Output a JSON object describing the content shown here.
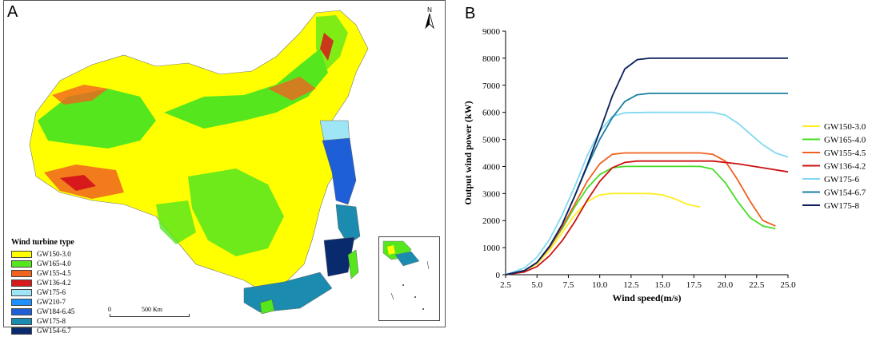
{
  "panel_a": {
    "letter": "A",
    "north_label": "N",
    "scale_zero": "0",
    "scale_label": "500 Km",
    "legend_title": "Wind turbine type",
    "legend": [
      {
        "label": "GW150-3.0",
        "color": "#ffff00"
      },
      {
        "label": "GW165-4.0",
        "color": "#55e61e"
      },
      {
        "label": "GW155-4.5",
        "color": "#f06420"
      },
      {
        "label": "GW136-4.2",
        "color": "#d7191c"
      },
      {
        "label": "GW175-6",
        "color": "#9ee6f5"
      },
      {
        "label": "GW210-7",
        "color": "#1e90ff"
      },
      {
        "label": "GW184-6.45",
        "color": "#1e5fd7"
      },
      {
        "label": "GW175-8",
        "color": "#1b8bb0"
      },
      {
        "label": "GW154-6.7",
        "color": "#0a2a6e"
      }
    ]
  },
  "panel_b": {
    "letter": "B"
  },
  "chart_data": {
    "type": "line",
    "title": "",
    "xlabel": "Wind speed(m/s)",
    "ylabel": "Output wind power (kW)",
    "xlim": [
      2.5,
      25.0
    ],
    "ylim": [
      0,
      9000
    ],
    "xticks": [
      "2.5",
      "5.0",
      "7.5",
      "10.0",
      "12.5",
      "15.0",
      "17.5",
      "20.0",
      "22.5",
      "25.0"
    ],
    "yticks": [
      "0",
      "1000",
      "2000",
      "3000",
      "4000",
      "5000",
      "6000",
      "7000",
      "8000",
      "9000"
    ],
    "grid": false,
    "legend_position": "right",
    "series": [
      {
        "name": "GW150-3.0",
        "color": "#ffee22",
        "x": [
          2.5,
          4,
          5,
          6,
          7,
          8,
          9,
          10,
          11,
          12,
          14,
          15,
          16,
          17,
          18
        ],
        "y": [
          0,
          150,
          400,
          900,
          1550,
          2200,
          2700,
          2950,
          3000,
          3000,
          3000,
          2950,
          2800,
          2600,
          2500
        ]
      },
      {
        "name": "GW165-4.0",
        "color": "#44dd22",
        "x": [
          2.5,
          4,
          5,
          6,
          7,
          8,
          9,
          10,
          11,
          12,
          14,
          16,
          18,
          19,
          20,
          21,
          22,
          23,
          24
        ],
        "y": [
          0,
          150,
          450,
          1000,
          1700,
          2500,
          3200,
          3700,
          3950,
          4000,
          4000,
          4000,
          4000,
          3900,
          3400,
          2700,
          2100,
          1800,
          1700
        ]
      },
      {
        "name": "GW155-4.5",
        "color": "#f06020",
        "x": [
          2.5,
          4,
          5,
          6,
          7,
          8,
          9,
          10,
          11,
          12,
          14,
          16,
          18,
          19,
          20,
          21,
          22,
          23,
          24
        ],
        "y": [
          0,
          150,
          450,
          1000,
          1750,
          2600,
          3450,
          4100,
          4450,
          4500,
          4500,
          4500,
          4500,
          4450,
          4200,
          3500,
          2700,
          2000,
          1800
        ]
      },
      {
        "name": "GW136-4.2",
        "color": "#cc1111",
        "x": [
          2.5,
          4,
          5,
          6,
          7,
          8,
          9,
          10,
          11,
          12,
          13,
          15,
          17,
          19,
          21,
          23,
          25
        ],
        "y": [
          0,
          100,
          300,
          700,
          1250,
          1950,
          2750,
          3450,
          3950,
          4150,
          4200,
          4200,
          4200,
          4200,
          4100,
          3950,
          3800
        ]
      },
      {
        "name": "GW175-6",
        "color": "#80d8f0",
        "x": [
          2.5,
          4,
          5,
          6,
          7,
          8,
          9,
          10,
          11,
          12,
          14,
          16,
          18,
          19,
          20,
          21,
          22,
          23,
          24,
          25
        ],
        "y": [
          0,
          250,
          650,
          1300,
          2200,
          3250,
          4400,
          5300,
          5850,
          5980,
          6000,
          6000,
          6000,
          6000,
          5900,
          5600,
          5200,
          4800,
          4500,
          4350
        ]
      },
      {
        "name": "GW154-6.7",
        "color": "#1a7fa0",
        "x": [
          2.5,
          4,
          5,
          6,
          7,
          8,
          9,
          10,
          11,
          12,
          13,
          14,
          16,
          18,
          20,
          22,
          25
        ],
        "y": [
          0,
          150,
          450,
          1050,
          1850,
          2900,
          4000,
          5000,
          5800,
          6400,
          6650,
          6700,
          6700,
          6700,
          6700,
          6700,
          6700
        ]
      },
      {
        "name": "GW175-8",
        "color": "#0a1f5c",
        "x": [
          2.5,
          4,
          5,
          6,
          7,
          8,
          9,
          10,
          11,
          12,
          13,
          14,
          16,
          18,
          20,
          22,
          25
        ],
        "y": [
          0,
          150,
          450,
          1050,
          1850,
          2900,
          4050,
          5300,
          6600,
          7600,
          7950,
          8000,
          8000,
          8000,
          8000,
          8000,
          8000
        ]
      }
    ]
  }
}
